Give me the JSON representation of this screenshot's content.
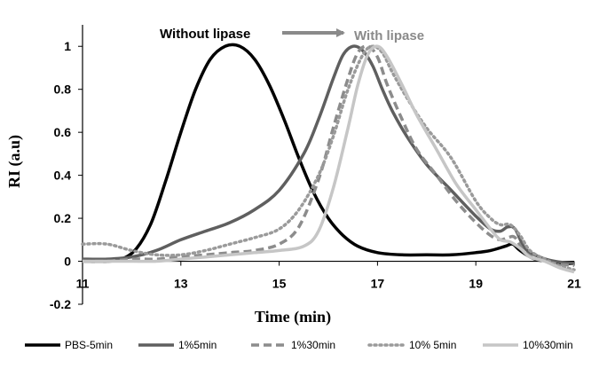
{
  "chart_data": {
    "type": "line",
    "title": "",
    "xlabel": "Time (min)",
    "ylabel": "RI (a.u)",
    "xlim": [
      11,
      21
    ],
    "ylim": [
      -0.2,
      1.1
    ],
    "xticks": [
      11,
      13,
      15,
      17,
      19,
      21
    ],
    "yticks": [
      -0.2,
      0,
      0.2,
      0.4,
      0.6,
      0.8,
      1
    ],
    "x_tick_labels": [
      "11",
      "13",
      "15",
      "17",
      "19",
      "21"
    ],
    "y_tick_labels": [
      "-0.2",
      "0",
      "0.2",
      "0.4",
      "0.6",
      "0.8",
      "1"
    ],
    "grid": false,
    "legend_position": "bottom",
    "annotations": {
      "left": "Without lipase",
      "right": "With lipase",
      "arrow_color": "#8a8a8a"
    },
    "series": [
      {
        "name": "PBS-5min",
        "color": "#000000",
        "dash": "solid",
        "x": [
          11,
          11.5,
          11.8,
          12.1,
          12.4,
          12.7,
          13.0,
          13.3,
          13.6,
          13.9,
          14.2,
          14.5,
          14.8,
          15.1,
          15.4,
          15.7,
          16.0,
          16.3,
          16.6,
          17.0,
          17.5,
          18.0,
          18.5,
          19.0,
          19.3,
          19.6,
          19.75,
          19.9,
          20.2,
          20.5,
          20.8,
          21
        ],
        "y": [
          0,
          0,
          0.01,
          0.06,
          0.18,
          0.38,
          0.6,
          0.8,
          0.94,
          1.0,
          1.0,
          0.94,
          0.82,
          0.66,
          0.48,
          0.32,
          0.2,
          0.12,
          0.07,
          0.04,
          0.03,
          0.03,
          0.03,
          0.04,
          0.05,
          0.07,
          0.08,
          0.05,
          0.01,
          0.0,
          -0.01,
          -0.01
        ]
      },
      {
        "name": "1%5min",
        "color": "#5f5f5f",
        "dash": "solid",
        "x": [
          11,
          11.5,
          12.0,
          12.5,
          13.0,
          13.5,
          14.0,
          14.5,
          15.0,
          15.5,
          15.8,
          16.1,
          16.3,
          16.5,
          16.7,
          16.9,
          17.1,
          17.3,
          17.6,
          18.0,
          18.5,
          19.0,
          19.3,
          19.5,
          19.65,
          19.8,
          20.0,
          20.3,
          20.6,
          21
        ],
        "y": [
          0.01,
          0.01,
          0.02,
          0.05,
          0.1,
          0.14,
          0.18,
          0.24,
          0.33,
          0.5,
          0.66,
          0.85,
          0.96,
          1.0,
          0.98,
          0.91,
          0.8,
          0.7,
          0.58,
          0.45,
          0.33,
          0.21,
          0.15,
          0.14,
          0.16,
          0.15,
          0.06,
          0.02,
          0.0,
          -0.01
        ]
      },
      {
        "name": "1%30min",
        "color": "#8c8c8c",
        "dash": "dashed",
        "x": [
          11,
          11.5,
          12.0,
          12.5,
          13.0,
          13.5,
          14.0,
          14.5,
          15.0,
          15.4,
          15.8,
          16.1,
          16.4,
          16.6,
          16.8,
          17.0,
          17.2,
          17.5,
          17.8,
          18.2,
          18.6,
          19.0,
          19.3,
          19.5,
          19.65,
          19.8,
          20.0,
          20.3,
          20.6,
          21
        ],
        "y": [
          0.0,
          0.0,
          0.01,
          0.01,
          0.02,
          0.03,
          0.04,
          0.05,
          0.08,
          0.16,
          0.38,
          0.62,
          0.85,
          0.97,
          1.0,
          0.95,
          0.82,
          0.66,
          0.52,
          0.4,
          0.28,
          0.18,
          0.12,
          0.1,
          0.11,
          0.11,
          0.04,
          0.01,
          -0.01,
          -0.02
        ]
      },
      {
        "name": "10% 5min",
        "color": "#9a9a9a",
        "dash": "dotted",
        "x": [
          11,
          11.5,
          12.0,
          12.5,
          13.0,
          13.5,
          14.0,
          14.5,
          15.0,
          15.4,
          15.8,
          16.1,
          16.4,
          16.7,
          16.9,
          17.1,
          17.3,
          17.6,
          18.0,
          18.5,
          19.0,
          19.3,
          19.5,
          19.7,
          19.9,
          20.1,
          20.4,
          20.7,
          21
        ],
        "y": [
          0.08,
          0.08,
          0.05,
          0.03,
          0.03,
          0.05,
          0.08,
          0.11,
          0.15,
          0.24,
          0.4,
          0.58,
          0.8,
          0.96,
          1.0,
          0.97,
          0.88,
          0.76,
          0.62,
          0.48,
          0.28,
          0.2,
          0.17,
          0.17,
          0.12,
          0.05,
          0.01,
          -0.02,
          -0.04
        ]
      },
      {
        "name": "10%30min",
        "color": "#c6c6c6",
        "dash": "solid",
        "x": [
          11,
          11.5,
          12.0,
          12.5,
          13.0,
          13.5,
          14.0,
          14.5,
          15.0,
          15.5,
          15.8,
          16.1,
          16.4,
          16.6,
          16.8,
          17.0,
          17.2,
          17.5,
          17.8,
          18.2,
          18.6,
          19.0,
          19.3,
          19.5,
          19.7,
          19.9,
          20.1,
          20.4,
          20.7,
          21
        ],
        "y": [
          0.0,
          0.0,
          0.0,
          0.0,
          0.01,
          0.02,
          0.03,
          0.04,
          0.05,
          0.07,
          0.14,
          0.34,
          0.62,
          0.82,
          0.96,
          1.0,
          0.95,
          0.82,
          0.68,
          0.52,
          0.36,
          0.24,
          0.15,
          0.1,
          0.09,
          0.06,
          0.02,
          0.0,
          -0.03,
          -0.05
        ]
      }
    ]
  }
}
